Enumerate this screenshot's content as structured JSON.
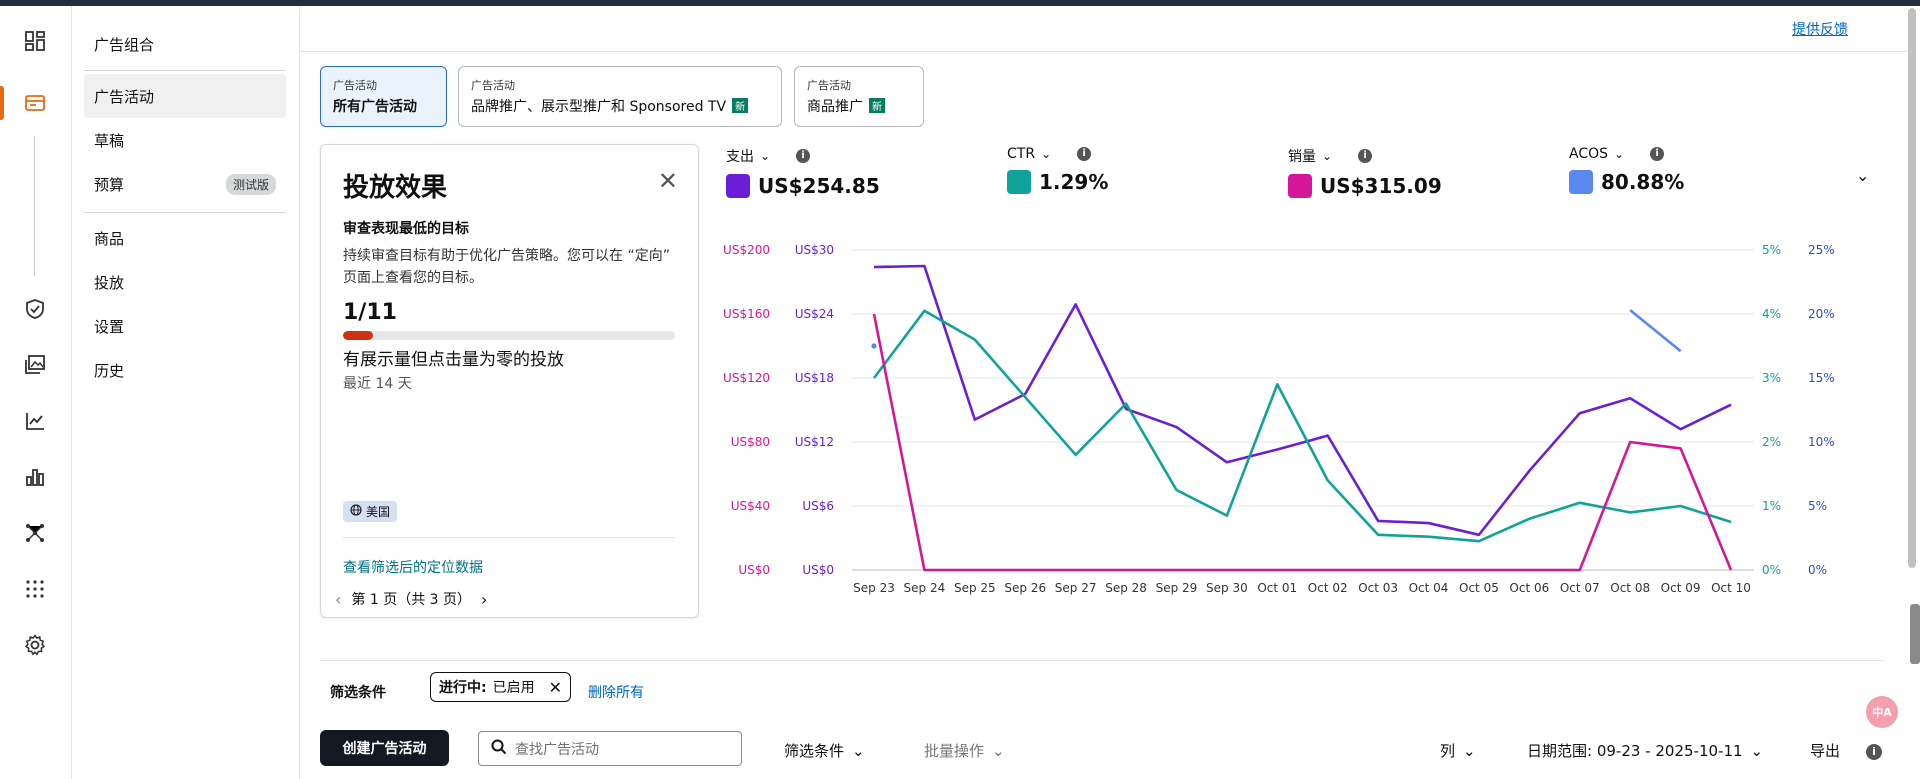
{
  "feedback": "提供反馈",
  "nav": {
    "items": [
      {
        "label": "广告组合"
      },
      {
        "label": "广告活动"
      },
      {
        "label": "草稿"
      },
      {
        "label": "预算",
        "badge": "测试版"
      },
      {
        "label": "商品"
      },
      {
        "label": "投放"
      },
      {
        "label": "设置"
      },
      {
        "label": "历史"
      }
    ]
  },
  "tabs": [
    {
      "small": "广告活动",
      "big": "所有广告活动"
    },
    {
      "small": "广告活动",
      "big": "品牌推广、展示型推广和 Sponsored TV",
      "badge": "新"
    },
    {
      "small": "广告活动",
      "big": "商品推广",
      "badge": "新"
    }
  ],
  "insight": {
    "title": "投放效果",
    "subtitle": "审查表现最低的目标",
    "desc": "持续审查目标有助于优化广告策略。您可以在 “定向” 页面上查看您的目标。",
    "fraction": "1/11",
    "progress": 0.0909,
    "metric_label": "有展示量但点击量为零的投放",
    "period": "最近 14 天",
    "region": "美国",
    "link": "查看筛选后的定位数据",
    "pager": "第 1 页（共 3 页）"
  },
  "metrics": [
    {
      "name": "支出",
      "value": "US$254.85",
      "color": "#6a1fd6"
    },
    {
      "name": "CTR",
      "value": "1.29%",
      "color": "#0fa39a"
    },
    {
      "name": "销量",
      "value": "US$315.09",
      "color": "#d4179a"
    },
    {
      "name": "ACOS",
      "value": "80.88%",
      "color": "#5b87f0"
    }
  ],
  "chart_data": {
    "type": "line",
    "categories": [
      "Sep 23",
      "Sep 24",
      "Sep 25",
      "Sep 26",
      "Sep 27",
      "Sep 28",
      "Sep 29",
      "Sep 30",
      "Oct 01",
      "Oct 02",
      "Oct 03",
      "Oct 04",
      "Oct 05",
      "Oct 06",
      "Oct 07",
      "Oct 08",
      "Oct 09",
      "Oct 10"
    ],
    "axes": {
      "sales": {
        "ticks": [
          "US$0",
          "US$40",
          "US$80",
          "US$120",
          "US$160",
          "US$200"
        ],
        "range": [
          0,
          200
        ],
        "color": "#d4179a"
      },
      "spend": {
        "ticks": [
          "US$0",
          "US$6",
          "US$12",
          "US$18",
          "US$24",
          "US$30"
        ],
        "range": [
          0,
          30
        ],
        "color": "#6a1fd6"
      },
      "ctr": {
        "ticks": [
          "0%",
          "1%",
          "2%",
          "3%",
          "4%",
          "5%"
        ],
        "range": [
          0,
          5
        ],
        "color": "#0fa39a"
      },
      "acos": {
        "ticks": [
          "0%",
          "5%",
          "10%",
          "15%",
          "20%",
          "25%"
        ],
        "range": [
          0,
          25
        ],
        "color": "#2d4fb8"
      }
    },
    "series": [
      {
        "name": "支出",
        "axis": "spend",
        "color": "#6a1fd6",
        "values": [
          28.4,
          28.5,
          14.1,
          16.5,
          24.9,
          15.1,
          13.4,
          10.1,
          11.3,
          12.6,
          4.6,
          4.4,
          3.3,
          9.3,
          14.7,
          16.1,
          13.2,
          15.5
        ]
      },
      {
        "name": "CTR",
        "axis": "ctr",
        "color": "#0fa39a",
        "values": [
          3.0,
          4.05,
          3.6,
          2.7,
          1.8,
          2.6,
          1.25,
          0.85,
          2.9,
          1.4,
          0.55,
          0.52,
          0.45,
          0.8,
          1.05,
          0.9,
          1.0,
          0.75
        ]
      },
      {
        "name": "销量",
        "axis": "sales",
        "color": "#d4179a",
        "values": [
          160,
          0,
          0,
          0,
          0,
          0,
          0,
          0,
          0,
          0,
          0,
          0,
          0,
          0,
          0,
          80,
          76,
          0
        ]
      },
      {
        "name": "ACOS",
        "axis": "acos",
        "color": "#5b87f0",
        "values": [
          17.5,
          null,
          null,
          null,
          null,
          null,
          null,
          null,
          null,
          null,
          null,
          null,
          null,
          null,
          null,
          20.3,
          17.1,
          null
        ]
      }
    ]
  },
  "filters": {
    "label": "筛选条件",
    "chip_key": "进行中:",
    "chip_value": "已启用",
    "remove_all": "删除所有"
  },
  "toolbar": {
    "create": "创建广告活动",
    "search_placeholder": "查找广告活动",
    "filter": "筛选条件",
    "bulk": "批量操作",
    "columns": "列",
    "date_range": "日期范围: 09-23 - 2025-10-11",
    "export": "导出"
  },
  "translate": "中A"
}
